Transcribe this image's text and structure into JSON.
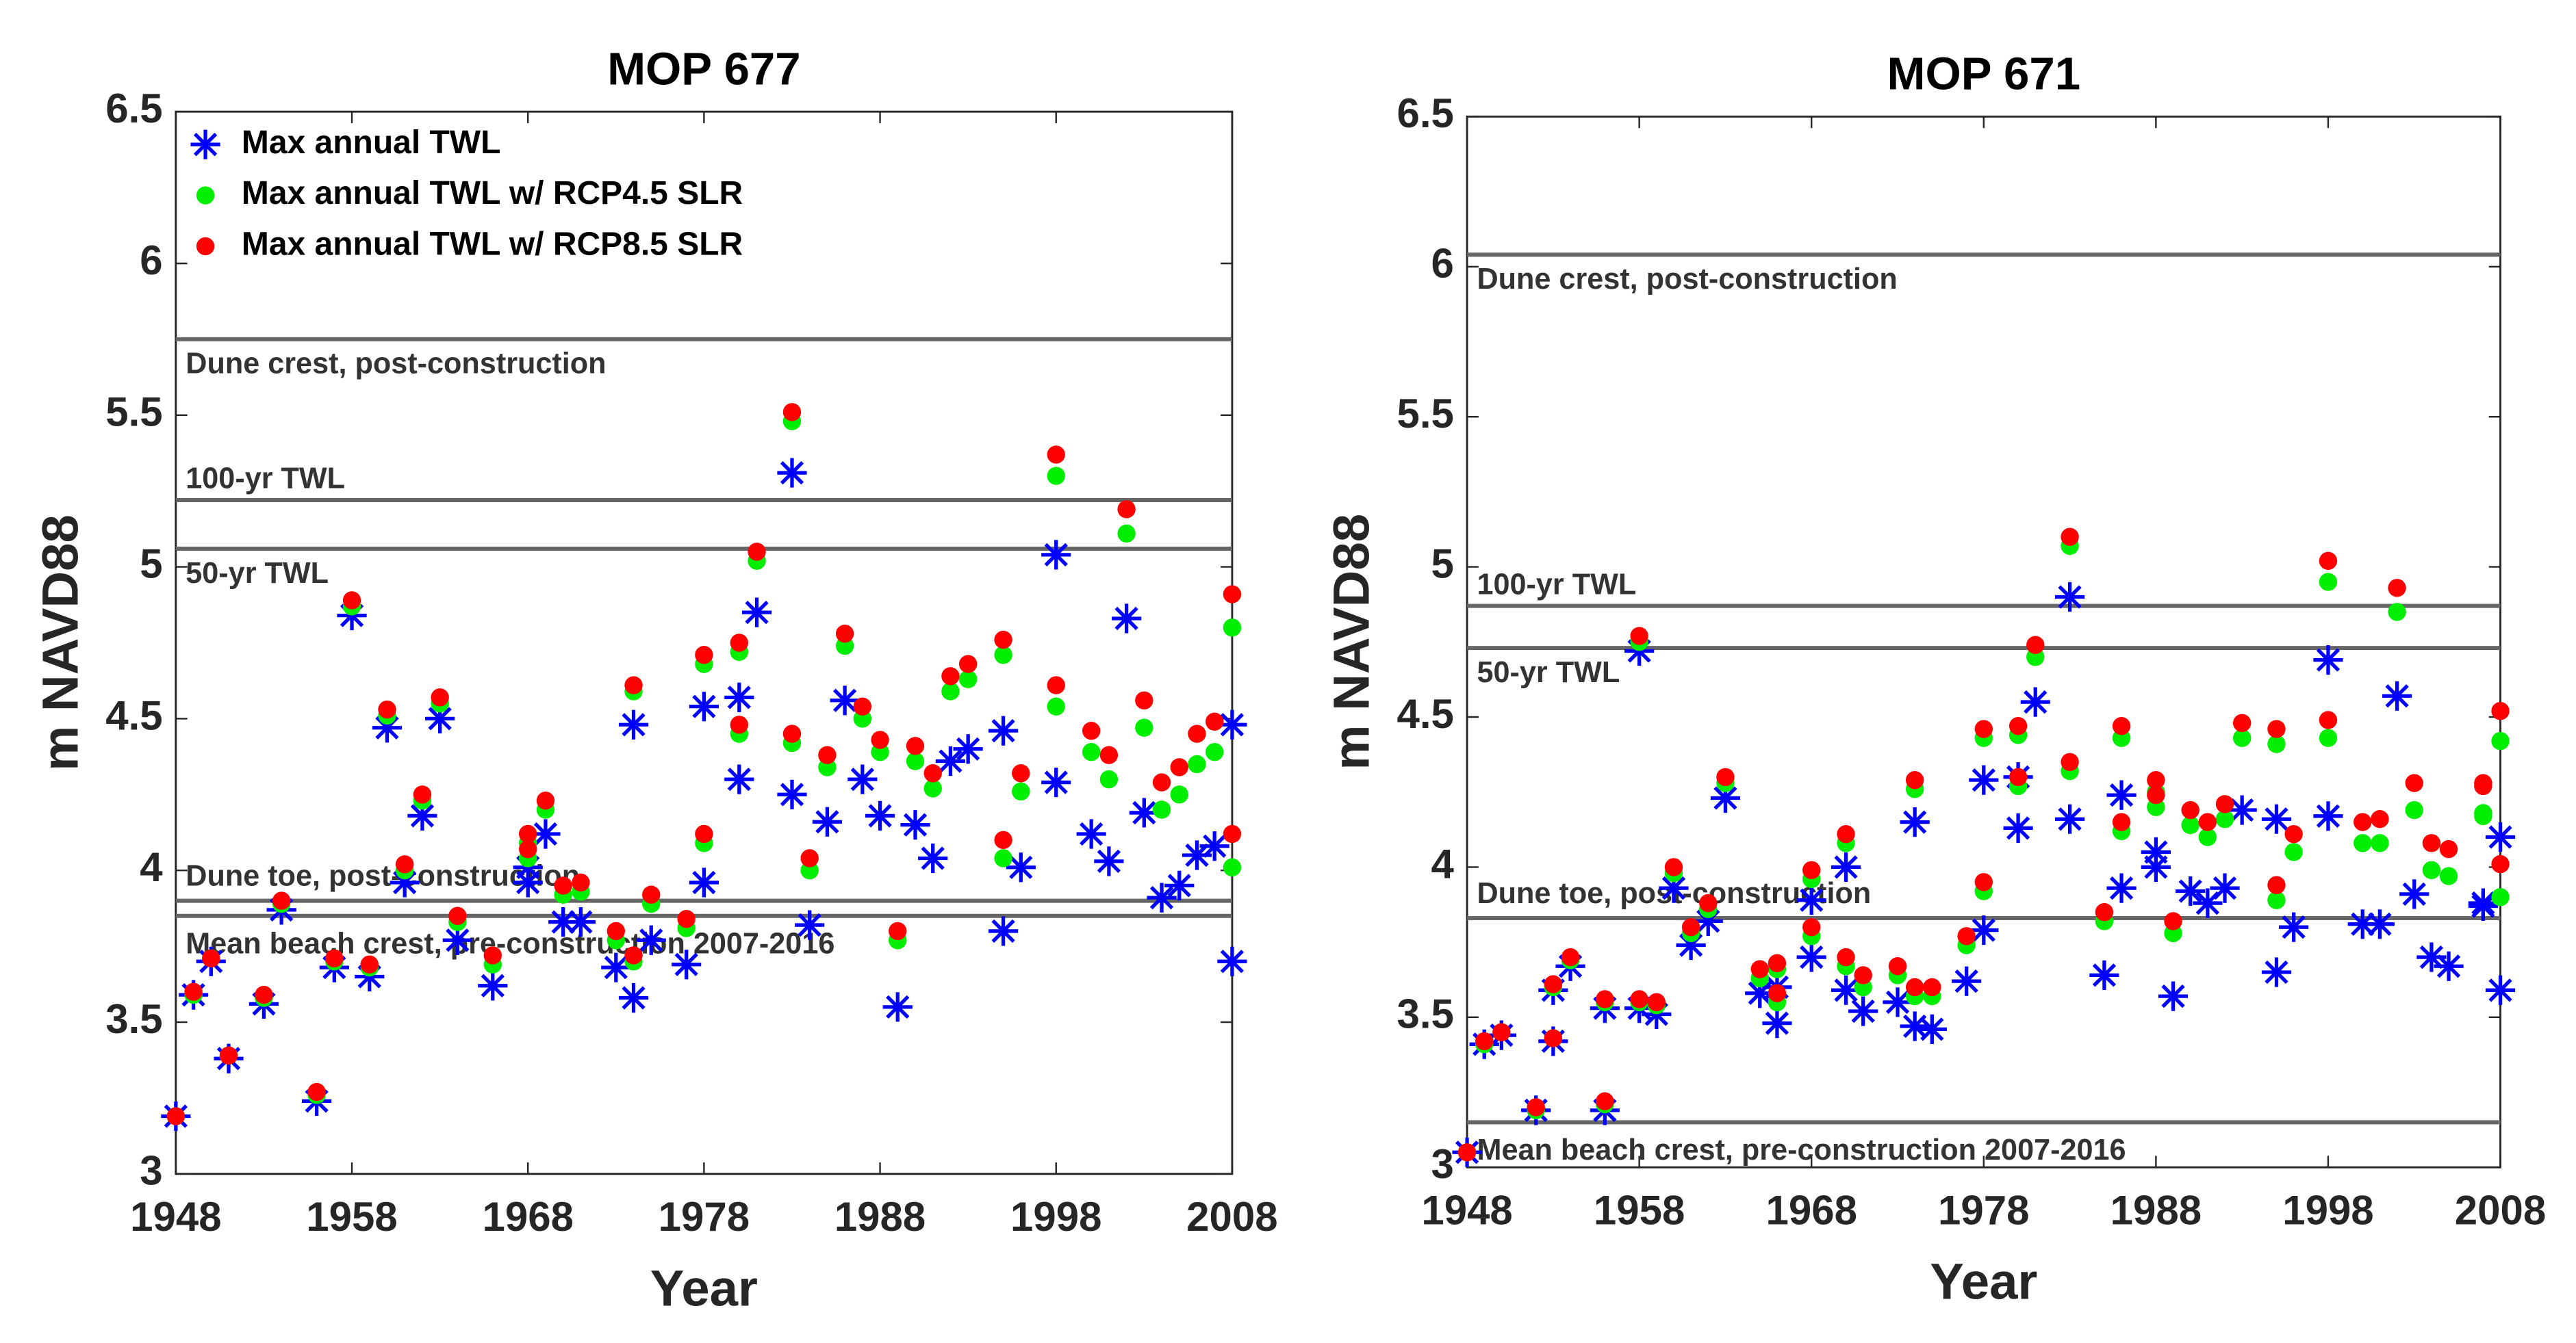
{
  "chart_data": [
    {
      "type": "scatter",
      "title": "MOP 677",
      "xlabel": "Year",
      "ylabel": "m NAVD88",
      "xlim": [
        1948,
        2008
      ],
      "ylim": [
        3,
        6.5
      ],
      "xticks": [
        1948,
        1958,
        1968,
        1978,
        1988,
        1998,
        2008
      ],
      "yticks": [
        3,
        3.5,
        4,
        4.5,
        5,
        5.5,
        6,
        6.5
      ],
      "legend": "upper left",
      "hlines": [
        {
          "value": 5.75,
          "label": "Dune crest, post-construction"
        },
        {
          "value": 5.22,
          "label": "100-yr TWL"
        },
        {
          "value": 5.06,
          "label": "50-yr TWL"
        },
        {
          "value": 3.9,
          "label": "Dune toe, post-construction"
        },
        {
          "value": 3.85,
          "label": "Mean beach crest, pre-construction 2007-2016"
        }
      ],
      "x": [
        1948,
        1949,
        1950,
        1951,
        1953,
        1954,
        1956,
        1957,
        1958,
        1959,
        1960,
        1961,
        1962,
        1963,
        1964,
        1966,
        1968,
        1968,
        1969,
        1970,
        1971,
        1973,
        1974,
        1974,
        1975,
        1977,
        1978,
        1978,
        1980,
        1980,
        1981,
        1983,
        1983,
        1984,
        1985,
        1986,
        1987,
        1988,
        1989,
        1990,
        1991,
        1992,
        1993,
        1995,
        1995,
        1996,
        1998,
        1998,
        2000,
        2001,
        2002,
        2003,
        2004,
        2005,
        2006,
        2007,
        2008,
        2008
      ],
      "series": [
        {
          "name": "Max annual TWL",
          "color": "#0000ff",
          "marker": "asterisk",
          "values": [
            3.19,
            3.59,
            3.7,
            3.38,
            3.56,
            3.87,
            3.24,
            3.68,
            4.84,
            3.65,
            4.47,
            3.96,
            4.18,
            4.5,
            3.77,
            3.62,
            3.96,
            4.01,
            4.12,
            3.83,
            3.83,
            3.68,
            3.58,
            4.48,
            3.77,
            3.69,
            3.96,
            4.54,
            4.3,
            4.57,
            4.85,
            4.25,
            5.31,
            3.82,
            4.16,
            4.56,
            4.3,
            4.18,
            3.55,
            4.15,
            4.04,
            4.36,
            4.4,
            3.8,
            4.46,
            4.01,
            4.29,
            5.04,
            4.12,
            4.03,
            4.83,
            4.19,
            3.91,
            3.95,
            4.05,
            4.08,
            4.48,
            3.7
          ]
        },
        {
          "name": "Max annual TWL w/ RCP4.5 SLR",
          "color": "#00ee00",
          "marker": "circle",
          "values": [
            3.19,
            3.59,
            3.71,
            3.39,
            3.58,
            3.89,
            3.26,
            3.7,
            4.87,
            3.68,
            4.51,
            4.0,
            4.23,
            4.55,
            3.83,
            3.69,
            4.04,
            4.09,
            4.2,
            3.92,
            3.93,
            3.77,
            3.7,
            4.59,
            3.89,
            3.81,
            4.09,
            4.68,
            4.45,
            4.72,
            5.02,
            4.42,
            5.48,
            4.0,
            4.34,
            4.74,
            4.5,
            4.39,
            3.77,
            4.36,
            4.27,
            4.59,
            4.63,
            4.04,
            4.71,
            4.26,
            4.54,
            5.3,
            4.39,
            4.3,
            5.11,
            4.47,
            4.2,
            4.25,
            4.35,
            4.39,
            4.8,
            4.01
          ]
        },
        {
          "name": "Max annual TWL w/ RCP8.5 SLR",
          "color": "#ff0000",
          "marker": "circle",
          "values": [
            3.19,
            3.6,
            3.71,
            3.39,
            3.59,
            3.9,
            3.27,
            3.71,
            4.89,
            3.69,
            4.53,
            4.02,
            4.25,
            4.57,
            3.85,
            3.72,
            4.07,
            4.12,
            4.23,
            3.95,
            3.96,
            3.8,
            3.72,
            4.61,
            3.92,
            3.84,
            4.12,
            4.71,
            4.48,
            4.75,
            5.05,
            4.45,
            5.51,
            4.04,
            4.38,
            4.78,
            4.54,
            4.43,
            3.8,
            4.41,
            4.32,
            4.64,
            4.68,
            4.1,
            4.76,
            4.32,
            4.61,
            5.37,
            4.46,
            4.38,
            5.19,
            4.56,
            4.29,
            4.34,
            4.45,
            4.49,
            4.91,
            4.12
          ]
        }
      ]
    },
    {
      "type": "scatter",
      "title": "MOP 671",
      "xlabel": "Year",
      "ylabel": "m NAVD88",
      "xlim": [
        1948,
        2008
      ],
      "ylim": [
        3,
        6.5
      ],
      "xticks": [
        1948,
        1958,
        1968,
        1978,
        1988,
        1998,
        2008
      ],
      "yticks": [
        3,
        3.5,
        4,
        4.5,
        5,
        5.5,
        6,
        6.5
      ],
      "hlines": [
        {
          "value": 6.04,
          "label": "Dune crest, post-construction"
        },
        {
          "value": 4.87,
          "label": "100-yr TWL"
        },
        {
          "value": 4.73,
          "label": "50-yr TWL"
        },
        {
          "value": 3.83,
          "label": "Dune toe, post-construction"
        },
        {
          "value": 3.15,
          "label": "Mean beach crest, pre-construction 2007-2016"
        }
      ],
      "x": [
        1948,
        1949,
        1950,
        1952,
        1953,
        1953,
        1954,
        1956,
        1956,
        1958,
        1958,
        1959,
        1960,
        1961,
        1962,
        1963,
        1965,
        1966,
        1966,
        1968,
        1968,
        1970,
        1970,
        1971,
        1973,
        1974,
        1974,
        1975,
        1977,
        1978,
        1978,
        1980,
        1980,
        1981,
        1983,
        1983,
        1985,
        1986,
        1986,
        1988,
        1988,
        1989,
        1990,
        1991,
        1992,
        1993,
        1995,
        1995,
        1996,
        1998,
        1998,
        2000,
        2001,
        2002,
        2003,
        2004,
        2005,
        2007,
        2007,
        2008,
        2008
      ],
      "series": [
        {
          "color": "#0000ff",
          "marker": "asterisk",
          "values": [
            3.05,
            3.41,
            3.44,
            3.19,
            3.42,
            3.59,
            3.67,
            3.19,
            3.53,
            3.53,
            4.72,
            3.51,
            3.93,
            3.74,
            3.82,
            4.23,
            3.58,
            3.48,
            3.6,
            3.89,
            3.7,
            4.0,
            3.59,
            3.52,
            3.55,
            3.47,
            4.15,
            3.46,
            3.62,
            3.79,
            4.29,
            4.13,
            4.3,
            4.55,
            4.16,
            4.9,
            3.64,
            3.93,
            4.24,
            4.0,
            4.05,
            3.57,
            3.92,
            3.88,
            3.93,
            4.19,
            3.65,
            4.16,
            3.8,
            4.17,
            4.69,
            3.81,
            3.81,
            4.57,
            3.91,
            3.7,
            3.67,
            3.88,
            3.87,
            4.1,
            3.59
          ]
        },
        {
          "color": "#00ee00",
          "marker": "circle",
          "values": [
            3.05,
            3.41,
            3.45,
            3.19,
            3.43,
            3.6,
            3.69,
            3.21,
            3.55,
            3.55,
            4.75,
            3.54,
            3.98,
            3.78,
            3.86,
            4.28,
            3.63,
            3.55,
            3.66,
            3.96,
            3.77,
            4.08,
            3.67,
            3.6,
            3.64,
            3.57,
            4.26,
            3.57,
            3.74,
            3.92,
            4.43,
            4.27,
            4.44,
            4.7,
            4.32,
            5.07,
            3.82,
            4.12,
            4.43,
            4.2,
            4.25,
            3.78,
            4.14,
            4.1,
            4.16,
            4.43,
            3.89,
            4.41,
            4.05,
            4.43,
            4.95,
            4.08,
            4.08,
            4.85,
            4.19,
            3.99,
            3.97,
            4.18,
            4.17,
            4.42,
            3.9
          ]
        },
        {
          "color": "#ff0000",
          "marker": "circle",
          "values": [
            3.05,
            3.42,
            3.45,
            3.2,
            3.43,
            3.61,
            3.7,
            3.22,
            3.56,
            3.56,
            4.77,
            3.55,
            4.0,
            3.8,
            3.88,
            4.3,
            3.66,
            3.58,
            3.68,
            3.99,
            3.8,
            4.11,
            3.7,
            3.64,
            3.67,
            3.6,
            4.29,
            3.6,
            3.77,
            3.95,
            4.46,
            4.3,
            4.47,
            4.74,
            4.35,
            5.1,
            3.85,
            4.15,
            4.47,
            4.24,
            4.29,
            3.82,
            4.19,
            4.15,
            4.21,
            4.48,
            3.94,
            4.46,
            4.11,
            4.49,
            5.02,
            4.15,
            4.16,
            4.93,
            4.28,
            4.08,
            4.06,
            4.28,
            4.27,
            4.52,
            4.01
          ]
        }
      ]
    }
  ]
}
